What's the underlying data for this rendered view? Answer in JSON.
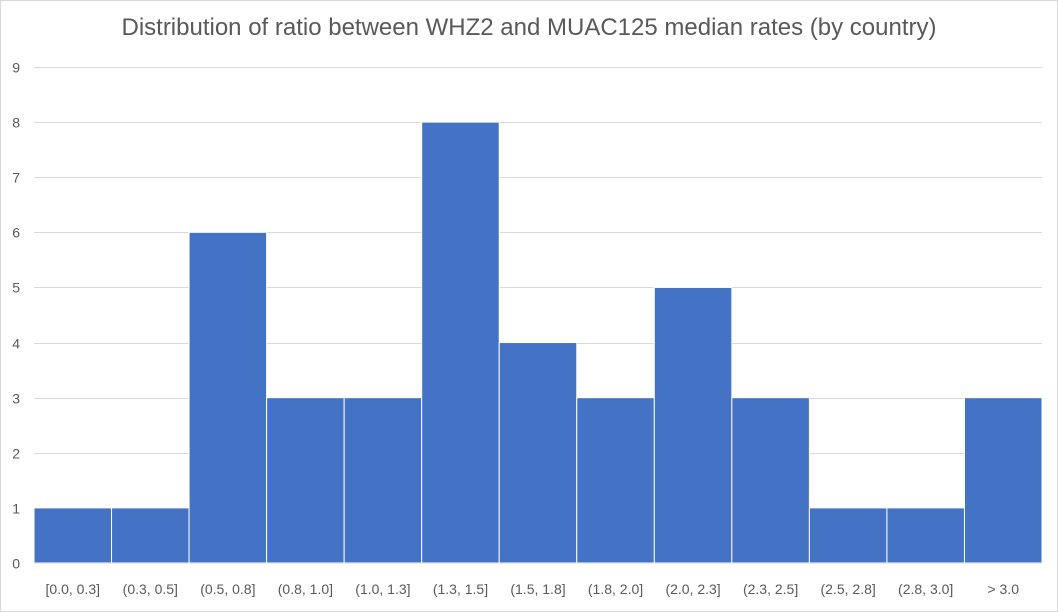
{
  "chart_data": {
    "type": "bar",
    "title": "Distribution of ratio between WHZ2 and MUAC125 median rates (by country)",
    "xlabel": "",
    "ylabel": "",
    "categories": [
      "[0.0, 0.3]",
      "(0.3, 0.5]",
      "(0.5, 0.8]",
      "(0.8, 1.0]",
      "(1.0, 1.3]",
      "(1.3, 1.5]",
      "(1.5, 1.8]",
      "(1.8, 2.0]",
      "(2.0, 2.3]",
      "(2.3, 2.5]",
      "(2.5, 2.8]",
      "(2.8, 3.0]",
      "> 3.0"
    ],
    "values": [
      1,
      1,
      6,
      3,
      3,
      8,
      4,
      3,
      5,
      3,
      1,
      1,
      3
    ],
    "ylim": [
      0,
      9
    ],
    "yticks": [
      0,
      1,
      2,
      3,
      4,
      5,
      6,
      7,
      8,
      9
    ],
    "grid": true,
    "bar_color": "#4472c4",
    "legend": "none"
  }
}
